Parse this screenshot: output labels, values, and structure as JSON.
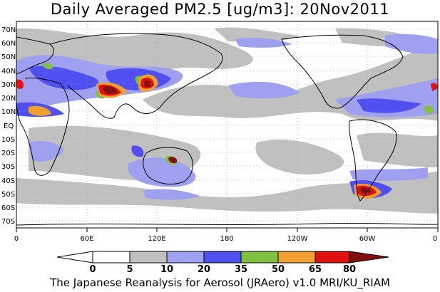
{
  "title": "Daily Averaged PM2.5 [ug/m3]: 20Nov2011",
  "map": {
    "lat_labels": [
      "70N",
      "60N",
      "50N",
      "40N",
      "30N",
      "20N",
      "10N",
      "EQ",
      "10S",
      "20S",
      "30S",
      "40S",
      "50S",
      "60S",
      "70S"
    ],
    "lon_labels": [
      "0",
      "60E",
      "120E",
      "180",
      "120W",
      "60W",
      "0"
    ]
  },
  "colorbar": {
    "ticks": [
      "0",
      "5",
      "10",
      "20",
      "35",
      "50",
      "65",
      "80"
    ],
    "colors": [
      "#ffffff",
      "#c0c0c0",
      "#a0a0f0",
      "#5050f0",
      "#80c040",
      "#f0a030",
      "#e01010",
      "#801010"
    ]
  },
  "colors": {
    "land_outline": "#000000",
    "grid": "#a0a0a0"
  },
  "footer": "The Japanese Reanalysis for Aerosol (JRAero) v1.0 MRI/KU_RIAM"
}
